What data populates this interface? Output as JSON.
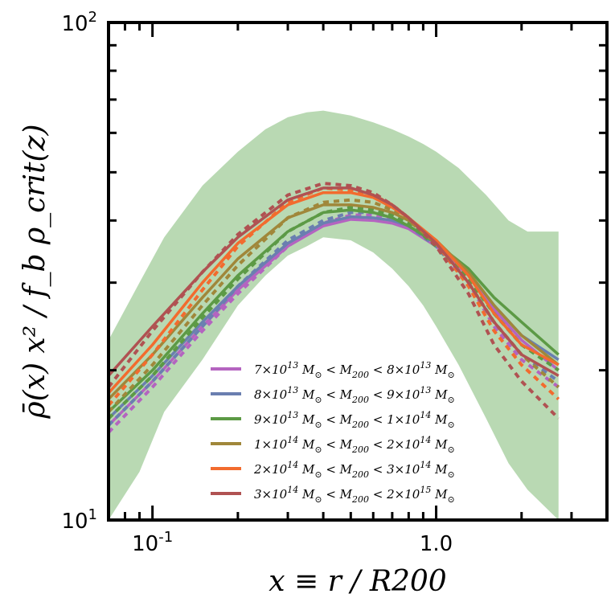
{
  "chart_data": {
    "type": "line",
    "xscale": "log",
    "yscale": "log",
    "xlim": [
      0.07,
      4.0
    ],
    "ylim": [
      10,
      100
    ],
    "xlabel": "x ≡ r / R200",
    "ylabel": "ρ̄(x) x² / f_b ρ_crit(z)",
    "xticks": [
      {
        "value": 0.1,
        "label": "10",
        "exp": "-1"
      },
      {
        "value": 1.0,
        "label": "1.0",
        "exp": ""
      }
    ],
    "yticks": [
      {
        "value": 10,
        "label": "10",
        "exp": "1"
      },
      {
        "value": 100,
        "label": "10",
        "exp": "2"
      }
    ],
    "legend_position": "lower-center",
    "band": {
      "name": "scatter band",
      "color": "#b9d9b3",
      "x": [
        0.07,
        0.09,
        0.11,
        0.15,
        0.2,
        0.25,
        0.3,
        0.35,
        0.4,
        0.5,
        0.6,
        0.7,
        0.8,
        0.9,
        1.0,
        1.2,
        1.5,
        1.8,
        2.1,
        2.7
      ],
      "upper": [
        23,
        30,
        37,
        47,
        55,
        61,
        64.5,
        66,
        66.5,
        65,
        63,
        61,
        59,
        57,
        55,
        51,
        45,
        40,
        38,
        38
      ],
      "lower": [
        10,
        12.5,
        16.5,
        21,
        27,
        31,
        34,
        35.5,
        37,
        36.5,
        34.5,
        32,
        29.5,
        27,
        24.5,
        20.5,
        16,
        13,
        11.5,
        10
      ]
    },
    "series": [
      {
        "name": "7×10^13 M☉ < M200 < 8×10^13 M☉",
        "legend": [
          "7×10",
          "13",
          " M",
          "⊙",
          " < M",
          "200",
          " < 8×10",
          "13",
          " M",
          "⊙"
        ],
        "color": "#b464c0",
        "x": [
          0.07,
          0.1,
          0.15,
          0.2,
          0.3,
          0.4,
          0.5,
          0.6,
          0.7,
          0.8,
          1.0,
          1.3,
          1.6,
          2.0,
          2.7
        ],
        "solid": [
          15.5,
          19,
          24.5,
          29,
          35.5,
          39,
          40.2,
          40,
          39.5,
          38.5,
          35.5,
          31,
          26.5,
          23,
          20
        ],
        "dashed": [
          15,
          18.5,
          24,
          28.5,
          35.5,
          39.5,
          41,
          41,
          40,
          39,
          35.5,
          30,
          24.5,
          21,
          18.5
        ]
      },
      {
        "name": "8×10^13 M☉ < M200 < 9×10^13 M☉",
        "legend": [
          "8×10",
          "13",
          " M",
          "⊙",
          " < M",
          "200",
          " < 9×10",
          "13",
          " M",
          "⊙"
        ],
        "color": "#6a7fb0",
        "x": [
          0.07,
          0.1,
          0.15,
          0.2,
          0.3,
          0.4,
          0.5,
          0.6,
          0.7,
          0.8,
          1.0,
          1.3,
          1.6,
          2.0,
          2.7
        ],
        "solid": [
          16,
          19.5,
          25,
          29.5,
          36,
          39.5,
          40.7,
          40.5,
          40,
          39,
          36,
          31.5,
          27,
          23.5,
          21
        ],
        "dashed": [
          15.5,
          19,
          24.5,
          29.5,
          36.5,
          40,
          41.5,
          41.5,
          40.5,
          39,
          35.5,
          30,
          25,
          21.5,
          19
        ]
      },
      {
        "name": "9×10^13 M☉ < M200 < 1×10^14 M☉",
        "legend": [
          "9×10",
          "13",
          " M",
          "⊙",
          " < M",
          "200",
          " < 1×10",
          "14",
          " M",
          "⊙"
        ],
        "color": "#5c9a45",
        "x": [
          0.07,
          0.1,
          0.15,
          0.2,
          0.3,
          0.4,
          0.5,
          0.6,
          0.7,
          0.8,
          1.0,
          1.3,
          1.6,
          2.0,
          2.7
        ],
        "solid": [
          16.5,
          20,
          26,
          31,
          38,
          41.5,
          42,
          41.5,
          40.5,
          39,
          36,
          32,
          28,
          25,
          21.5
        ],
        "dashed": [
          16,
          19.5,
          25.5,
          30.5,
          38,
          41.5,
          42.5,
          42,
          41,
          39.5,
          35.5,
          30.5,
          26,
          22.5,
          20
        ]
      },
      {
        "name": "1×10^14 M☉ < M200 < 2×10^14 M☉",
        "legend": [
          "1×10",
          "14",
          " M",
          "⊙",
          " < M",
          "200",
          " < 2×10",
          "14",
          " M",
          "⊙"
        ],
        "color": "#a0873a",
        "x": [
          0.07,
          0.1,
          0.15,
          0.2,
          0.3,
          0.4,
          0.5,
          0.6,
          0.7,
          0.8,
          1.0,
          1.3,
          1.6,
          2.0,
          2.7
        ],
        "solid": [
          17.5,
          21.5,
          28,
          33.5,
          40.5,
          43,
          43,
          42.5,
          41.5,
          40,
          36.5,
          31.5,
          27,
          23.5,
          20.5
        ],
        "dashed": [
          16.5,
          20.5,
          27,
          32.5,
          40.5,
          43.5,
          44,
          43.5,
          42,
          40,
          36,
          30,
          25,
          21.5,
          18.5
        ]
      },
      {
        "name": "2×10^14 M☉ < M200 < 3×10^14 M☉",
        "legend": [
          "2×10",
          "14",
          " M",
          "⊙",
          " < M",
          "200",
          " < 3×10",
          "14",
          " M",
          "⊙"
        ],
        "color": "#f26b2e",
        "x": [
          0.07,
          0.1,
          0.15,
          0.2,
          0.3,
          0.4,
          0.5,
          0.6,
          0.7,
          0.8,
          1.0,
          1.3,
          1.6,
          2.0,
          2.7
        ],
        "solid": [
          18,
          22.5,
          30,
          36,
          43,
          45.5,
          45.5,
          44.5,
          42.5,
          40.5,
          36.5,
          31,
          26,
          22.5,
          20.5
        ],
        "dashed": [
          17,
          21.5,
          29,
          35.5,
          43.5,
          46.5,
          46,
          45,
          43,
          40.5,
          36,
          29.5,
          24,
          20.5,
          17.5
        ]
      },
      {
        "name": "3×10^14 M☉ < M200 < 2×10^15 M☉",
        "legend": [
          "3×10",
          "14",
          " M",
          "⊙",
          " < M",
          "200",
          " < 2×10",
          "15",
          " M",
          "⊙"
        ],
        "color": "#b05252",
        "x": [
          0.07,
          0.1,
          0.15,
          0.2,
          0.3,
          0.4,
          0.5,
          0.6,
          0.7,
          0.8,
          1.0,
          1.3,
          1.6,
          2.0,
          2.7
        ],
        "solid": [
          19.5,
          24.5,
          31.5,
          37,
          44,
          46.5,
          46.5,
          45,
          43,
          40.5,
          36,
          30,
          25,
          21.5,
          19.5
        ],
        "dashed": [
          18.5,
          24,
          31.5,
          37.5,
          45,
          47.5,
          47,
          45.5,
          43,
          40.5,
          35.5,
          28.5,
          22.5,
          19,
          16
        ]
      }
    ]
  }
}
